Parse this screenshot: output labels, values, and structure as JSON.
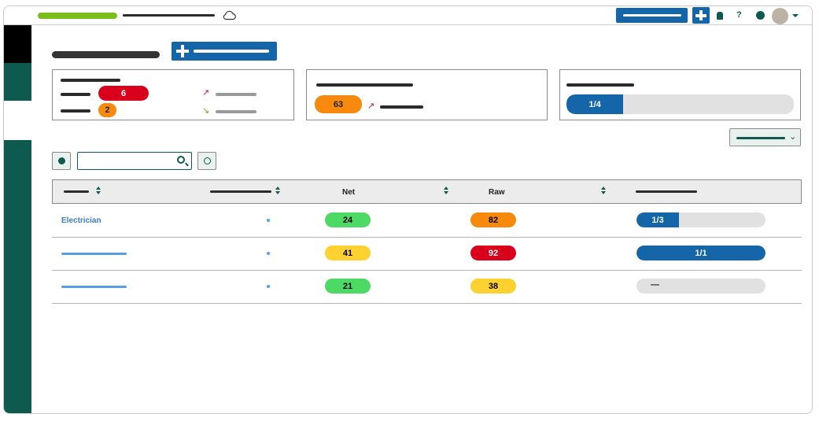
{
  "header": {
    "cloud_icon": "cloud-icon",
    "help_label": "?"
  },
  "cards": {
    "card1": {
      "badge_high": "6",
      "badge_medium": "2",
      "trend_up_icon": "↗",
      "trend_down_icon": "↘"
    },
    "card2": {
      "value": "63",
      "trend_up_icon": "↗"
    },
    "card3": {
      "progress_label": "1/4",
      "progress_fraction": 0.25
    }
  },
  "filters": {
    "search_value": "",
    "chevron": "⌄"
  },
  "table": {
    "columns": [
      "",
      "",
      "Net",
      "Raw",
      ""
    ],
    "rows": [
      {
        "name": "Electrician",
        "net": "24",
        "net_color": "#4cd964",
        "raw": "82",
        "raw_color": "#f7890c",
        "progress_label": "1/3",
        "progress_fraction": 0.33
      },
      {
        "name": "",
        "net": "41",
        "net_color": "#fdd230",
        "raw": "92",
        "raw_color": "#d9001b",
        "progress_label": "1/1",
        "progress_fraction": 1.0
      },
      {
        "name": "",
        "net": "21",
        "net_color": "#4cd964",
        "raw": "38",
        "raw_color": "#fdd230",
        "progress_label": "—",
        "progress_fraction": 0
      }
    ]
  },
  "colors": {
    "brand_green": "#0e5a4e",
    "primary_blue": "#1466a8",
    "logo_green": "#7cbd1e",
    "red": "#d9001b",
    "orange": "#f7890c",
    "yellow": "#fdd230",
    "green": "#4cd964"
  }
}
